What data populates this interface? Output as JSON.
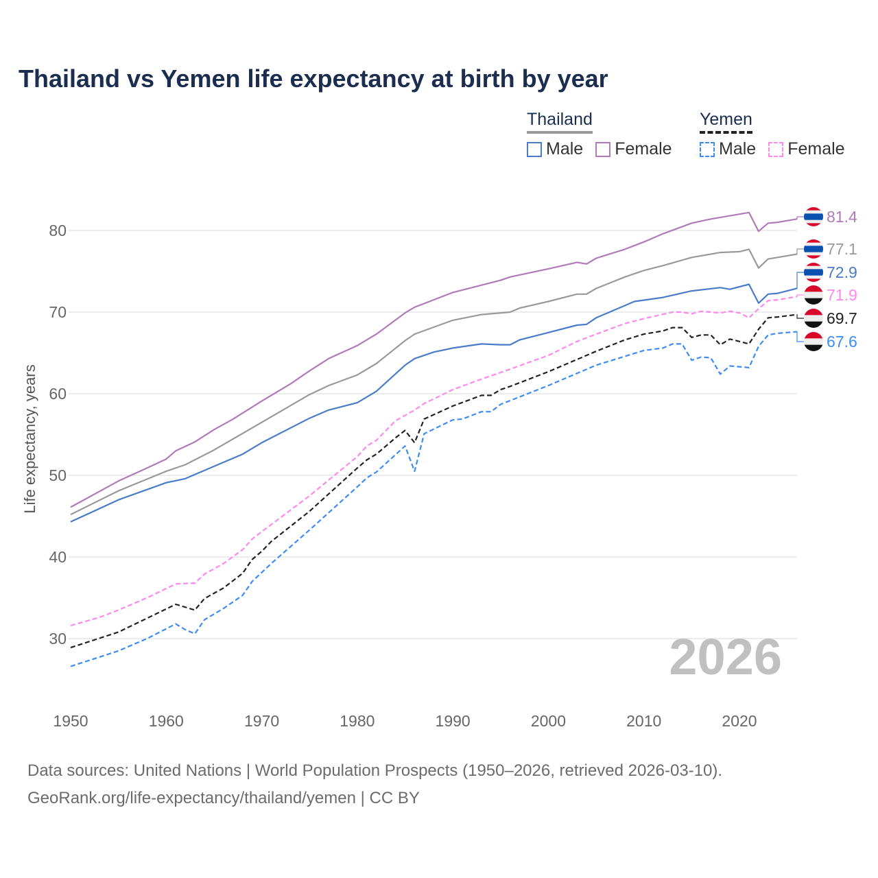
{
  "chart_data": {
    "type": "line",
    "title": "Thailand vs Yemen life expectancy at birth by year",
    "xlabel": "",
    "ylabel": "Life expectancy, years",
    "xlim": [
      1950,
      2026
    ],
    "ylim": [
      25,
      85
    ],
    "x_ticks": [
      "1950",
      "1960",
      "1970",
      "1980",
      "1990",
      "2000",
      "2010",
      "2020"
    ],
    "y_ticks": [
      "30",
      "40",
      "50",
      "60",
      "70",
      "80"
    ],
    "grid": true,
    "watermark": "2026",
    "legend": {
      "placement": "top-right",
      "groups": [
        {
          "country": "Thailand",
          "items": [
            "Male",
            "Female"
          ]
        },
        {
          "country": "Yemen",
          "items": [
            "Male",
            "Female"
          ]
        }
      ]
    },
    "series": [
      {
        "name": "Thailand Female",
        "color": "#b07ab8",
        "dashed": false,
        "end_label": "81.4",
        "flag": "thailand",
        "points": [
          [
            1950,
            46.1
          ],
          [
            1955,
            49.3
          ],
          [
            1958,
            50.9
          ],
          [
            1960,
            52.0
          ],
          [
            1961,
            53.0
          ],
          [
            1963,
            54.1
          ],
          [
            1965,
            55.6
          ],
          [
            1967,
            56.9
          ],
          [
            1970,
            59.1
          ],
          [
            1973,
            61.2
          ],
          [
            1975,
            62.8
          ],
          [
            1977,
            64.3
          ],
          [
            1980,
            65.9
          ],
          [
            1982,
            67.3
          ],
          [
            1985,
            69.9
          ],
          [
            1986,
            70.6
          ],
          [
            1990,
            72.4
          ],
          [
            1995,
            73.9
          ],
          [
            1996,
            74.3
          ],
          [
            2000,
            75.3
          ],
          [
            2003,
            76.1
          ],
          [
            2004,
            75.9
          ],
          [
            2005,
            76.6
          ],
          [
            2008,
            77.7
          ],
          [
            2010,
            78.6
          ],
          [
            2012,
            79.6
          ],
          [
            2015,
            80.9
          ],
          [
            2017,
            81.4
          ],
          [
            2019,
            81.8
          ],
          [
            2021,
            82.2
          ],
          [
            2022,
            79.9
          ],
          [
            2023,
            80.9
          ],
          [
            2024,
            81.0
          ],
          [
            2025,
            81.2
          ],
          [
            2026,
            81.4
          ]
        ]
      },
      {
        "name": "Thailand",
        "color": "#999999",
        "dashed": false,
        "end_label": "77.1",
        "flag": "thailand",
        "points": [
          [
            1950,
            45.2
          ],
          [
            1955,
            48.1
          ],
          [
            1960,
            50.5
          ],
          [
            1962,
            51.3
          ],
          [
            1965,
            53.1
          ],
          [
            1970,
            56.5
          ],
          [
            1975,
            59.9
          ],
          [
            1977,
            61.0
          ],
          [
            1980,
            62.3
          ],
          [
            1982,
            63.7
          ],
          [
            1985,
            66.5
          ],
          [
            1986,
            67.3
          ],
          [
            1990,
            69.0
          ],
          [
            1993,
            69.7
          ],
          [
            1996,
            70.0
          ],
          [
            1997,
            70.5
          ],
          [
            2000,
            71.3
          ],
          [
            2003,
            72.2
          ],
          [
            2004,
            72.2
          ],
          [
            2005,
            72.9
          ],
          [
            2008,
            74.3
          ],
          [
            2010,
            75.1
          ],
          [
            2012,
            75.7
          ],
          [
            2015,
            76.7
          ],
          [
            2018,
            77.3
          ],
          [
            2020,
            77.4
          ],
          [
            2021,
            77.7
          ],
          [
            2022,
            75.4
          ],
          [
            2023,
            76.5
          ],
          [
            2025,
            76.9
          ],
          [
            2026,
            77.1
          ]
        ]
      },
      {
        "name": "Thailand Male",
        "color": "#4a7bc8",
        "dashed": false,
        "end_label": "72.9",
        "flag": "thailand",
        "points": [
          [
            1950,
            44.3
          ],
          [
            1955,
            47.0
          ],
          [
            1960,
            49.1
          ],
          [
            1962,
            49.6
          ],
          [
            1965,
            51.1
          ],
          [
            1968,
            52.6
          ],
          [
            1970,
            54.0
          ],
          [
            1975,
            57.0
          ],
          [
            1977,
            58.0
          ],
          [
            1980,
            58.9
          ],
          [
            1982,
            60.3
          ],
          [
            1985,
            63.5
          ],
          [
            1986,
            64.3
          ],
          [
            1988,
            65.1
          ],
          [
            1990,
            65.6
          ],
          [
            1993,
            66.1
          ],
          [
            1995,
            66.0
          ],
          [
            1996,
            66.0
          ],
          [
            1997,
            66.6
          ],
          [
            2000,
            67.5
          ],
          [
            2003,
            68.4
          ],
          [
            2004,
            68.5
          ],
          [
            2005,
            69.3
          ],
          [
            2008,
            70.8
          ],
          [
            2009,
            71.3
          ],
          [
            2012,
            71.8
          ],
          [
            2015,
            72.6
          ],
          [
            2018,
            73.0
          ],
          [
            2019,
            72.8
          ],
          [
            2021,
            73.4
          ],
          [
            2022,
            71.1
          ],
          [
            2023,
            72.2
          ],
          [
            2024,
            72.3
          ],
          [
            2026,
            72.9
          ]
        ]
      },
      {
        "name": "Yemen Female",
        "color": "#ff88ee",
        "dashed": true,
        "end_label": "71.9",
        "flag": "yemen",
        "points": [
          [
            1950,
            31.6
          ],
          [
            1953,
            32.6
          ],
          [
            1955,
            33.5
          ],
          [
            1958,
            35.0
          ],
          [
            1961,
            36.7
          ],
          [
            1963,
            36.8
          ],
          [
            1964,
            37.9
          ],
          [
            1966,
            39.2
          ],
          [
            1968,
            40.9
          ],
          [
            1969,
            42.2
          ],
          [
            1970,
            43.1
          ],
          [
            1975,
            47.5
          ],
          [
            1980,
            52.3
          ],
          [
            1981,
            53.6
          ],
          [
            1982,
            54.3
          ],
          [
            1984,
            56.7
          ],
          [
            1986,
            58.0
          ],
          [
            1987,
            58.8
          ],
          [
            1990,
            60.5
          ],
          [
            1993,
            61.8
          ],
          [
            1995,
            62.6
          ],
          [
            2000,
            64.7
          ],
          [
            2003,
            66.4
          ],
          [
            2005,
            67.3
          ],
          [
            2008,
            68.6
          ],
          [
            2010,
            69.2
          ],
          [
            2013,
            70.0
          ],
          [
            2014,
            70.0
          ],
          [
            2015,
            69.8
          ],
          [
            2016,
            70.1
          ],
          [
            2018,
            69.9
          ],
          [
            2019,
            70.1
          ],
          [
            2020,
            69.9
          ],
          [
            2021,
            69.3
          ],
          [
            2022,
            70.4
          ],
          [
            2023,
            71.4
          ],
          [
            2024,
            71.5
          ],
          [
            2026,
            71.9
          ]
        ]
      },
      {
        "name": "Yemen",
        "color": "#222222",
        "dashed": true,
        "end_label": "69.7",
        "flag": "yemen",
        "points": [
          [
            1950,
            28.9
          ],
          [
            1955,
            30.8
          ],
          [
            1958,
            32.5
          ],
          [
            1961,
            34.2
          ],
          [
            1963,
            33.5
          ],
          [
            1964,
            34.9
          ],
          [
            1966,
            36.2
          ],
          [
            1968,
            38.0
          ],
          [
            1969,
            39.7
          ],
          [
            1970,
            40.7
          ],
          [
            1971,
            41.9
          ],
          [
            1975,
            45.6
          ],
          [
            1980,
            50.9
          ],
          [
            1981,
            51.9
          ],
          [
            1982,
            52.6
          ],
          [
            1984,
            54.6
          ],
          [
            1985,
            55.5
          ],
          [
            1986,
            54.0
          ],
          [
            1987,
            56.9
          ],
          [
            1990,
            58.5
          ],
          [
            1993,
            59.8
          ],
          [
            1994,
            59.8
          ],
          [
            1995,
            60.5
          ],
          [
            1996,
            60.9
          ],
          [
            2000,
            62.7
          ],
          [
            2005,
            65.2
          ],
          [
            2008,
            66.6
          ],
          [
            2010,
            67.3
          ],
          [
            2012,
            67.7
          ],
          [
            2013,
            68.1
          ],
          [
            2014,
            68.1
          ],
          [
            2015,
            66.9
          ],
          [
            2016,
            67.2
          ],
          [
            2017,
            67.2
          ],
          [
            2018,
            66.0
          ],
          [
            2019,
            66.7
          ],
          [
            2021,
            66.1
          ],
          [
            2022,
            67.9
          ],
          [
            2023,
            69.3
          ],
          [
            2024,
            69.4
          ],
          [
            2026,
            69.7
          ]
        ]
      },
      {
        "name": "Yemen Male",
        "color": "#3d8bf5",
        "dashed": true,
        "end_label": "67.6",
        "flag": "yemen",
        "points": [
          [
            1950,
            26.6
          ],
          [
            1955,
            28.5
          ],
          [
            1958,
            30.0
          ],
          [
            1961,
            31.8
          ],
          [
            1962,
            31.1
          ],
          [
            1963,
            30.6
          ],
          [
            1964,
            32.3
          ],
          [
            1966,
            33.7
          ],
          [
            1968,
            35.3
          ],
          [
            1969,
            37.0
          ],
          [
            1971,
            39.2
          ],
          [
            1975,
            43.3
          ],
          [
            1980,
            48.6
          ],
          [
            1981,
            49.7
          ],
          [
            1982,
            50.4
          ],
          [
            1985,
            53.6
          ],
          [
            1986,
            50.5
          ],
          [
            1987,
            55.1
          ],
          [
            1990,
            56.8
          ],
          [
            1991,
            56.9
          ],
          [
            1993,
            57.8
          ],
          [
            1994,
            57.8
          ],
          [
            1995,
            58.7
          ],
          [
            2000,
            61.0
          ],
          [
            2001,
            61.5
          ],
          [
            2005,
            63.5
          ],
          [
            2010,
            65.3
          ],
          [
            2012,
            65.6
          ],
          [
            2013,
            66.1
          ],
          [
            2014,
            66.1
          ],
          [
            2015,
            64.1
          ],
          [
            2016,
            64.5
          ],
          [
            2017,
            64.4
          ],
          [
            2018,
            62.4
          ],
          [
            2019,
            63.4
          ],
          [
            2021,
            63.2
          ],
          [
            2022,
            65.8
          ],
          [
            2023,
            67.2
          ],
          [
            2024,
            67.4
          ],
          [
            2026,
            67.6
          ]
        ]
      }
    ]
  },
  "legend": {
    "thailand": "Thailand",
    "yemen": "Yemen",
    "male": "Male",
    "female": "Female"
  },
  "footer": {
    "line1": "Data sources: United Nations | World Population Prospects (1950–2026, retrieved 2026-03-10).",
    "line2": "GeoRank.org/life-expectancy/thailand/yemen | CC BY"
  }
}
